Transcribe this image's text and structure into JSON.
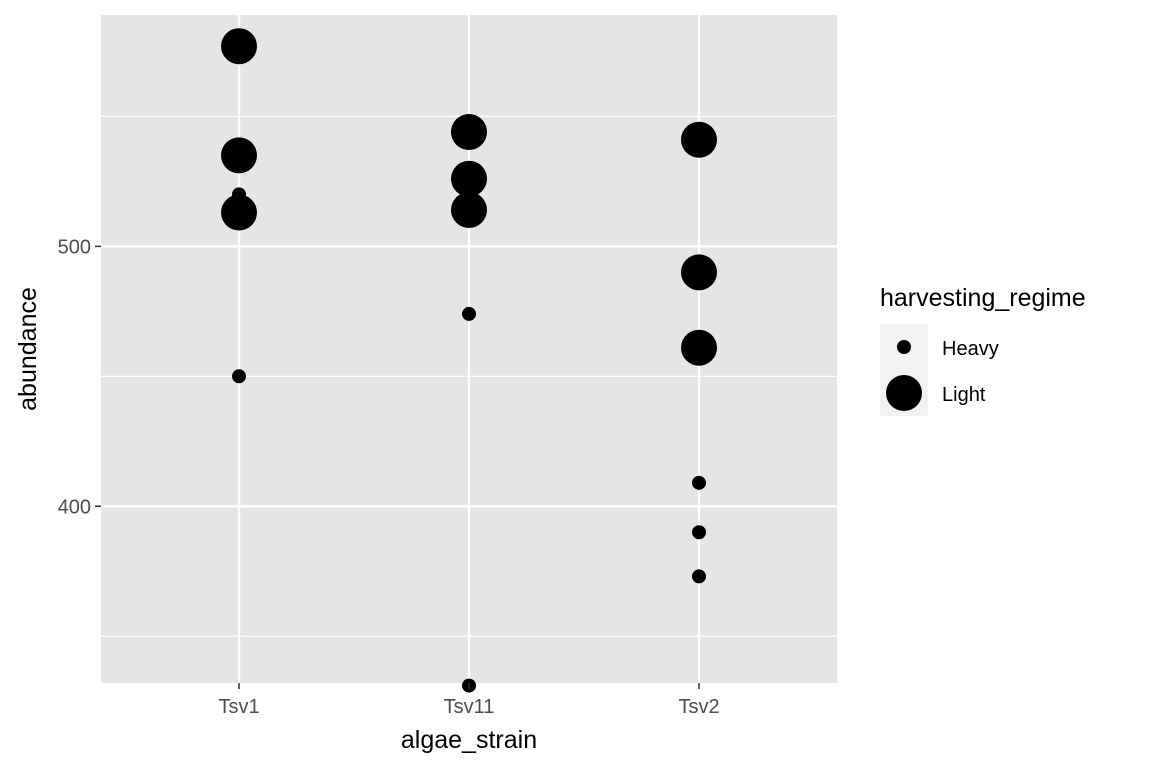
{
  "chart_data": {
    "type": "scatter",
    "title": "",
    "xlabel": "algae_strain",
    "ylabel": "abundance",
    "categories": [
      "Tsv1",
      "Tsv11",
      "Tsv2"
    ],
    "ylim": [
      332,
      589
    ],
    "yticks": [
      400,
      500
    ],
    "y_minor_ticks": [
      350,
      450,
      550
    ],
    "grid": true,
    "legend": {
      "title": "harvesting_regime",
      "position": "right",
      "entries": [
        "Heavy",
        "Light"
      ]
    },
    "series": [
      {
        "name": "Heavy",
        "size": "small",
        "points": [
          {
            "x": "Tsv1",
            "y": 520
          },
          {
            "x": "Tsv1",
            "y": 450
          },
          {
            "x": "Tsv11",
            "y": 474
          },
          {
            "x": "Tsv11",
            "y": 331
          },
          {
            "x": "Tsv2",
            "y": 409
          },
          {
            "x": "Tsv2",
            "y": 390
          },
          {
            "x": "Tsv2",
            "y": 373
          }
        ]
      },
      {
        "name": "Light",
        "size": "large",
        "points": [
          {
            "x": "Tsv1",
            "y": 577
          },
          {
            "x": "Tsv1",
            "y": 535
          },
          {
            "x": "Tsv1",
            "y": 513
          },
          {
            "x": "Tsv11",
            "y": 544
          },
          {
            "x": "Tsv11",
            "y": 526
          },
          {
            "x": "Tsv11",
            "y": 514
          },
          {
            "x": "Tsv2",
            "y": 541
          },
          {
            "x": "Tsv2",
            "y": 490
          },
          {
            "x": "Tsv2",
            "y": 461
          }
        ]
      }
    ],
    "colors": {
      "panel": "#e5e5e5",
      "grid": "#ffffff",
      "point": "#000000",
      "tick_text": "#4d4d4d"
    }
  }
}
